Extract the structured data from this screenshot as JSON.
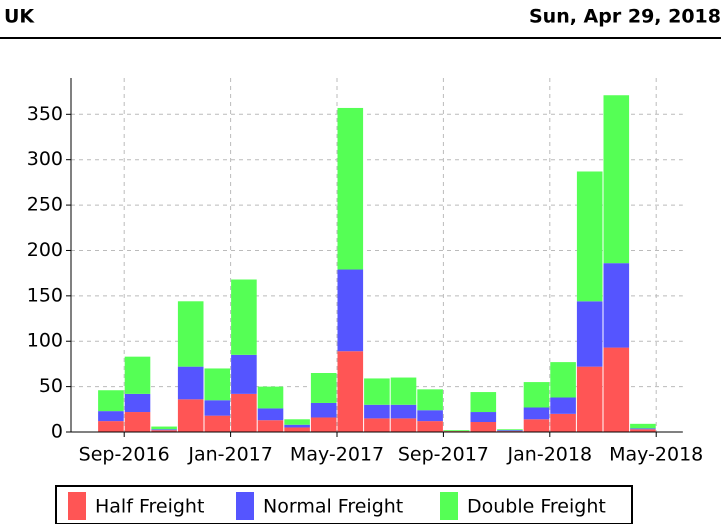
{
  "header": {
    "left": "UK",
    "right": "Sun, Apr 29, 2018"
  },
  "chart_data": {
    "type": "stacked_bar",
    "categories": [
      null,
      null,
      "Sep-2016",
      null,
      null,
      null,
      "Jan-2017",
      null,
      null,
      null,
      "May-2017",
      null,
      null,
      null,
      "Sep-2017",
      null,
      null,
      null,
      "Jan-2018",
      null,
      null,
      null,
      "May-2018"
    ],
    "series": [
      {
        "name": "Half Freight",
        "color": "#ff5555",
        "values": [
          null,
          12,
          22,
          2,
          36,
          18,
          42,
          13,
          5,
          16,
          89,
          15,
          15,
          12,
          1,
          11,
          1,
          14,
          20,
          72,
          93,
          3,
          null
        ]
      },
      {
        "name": "Normal Freight",
        "color": "#5555ff",
        "values": [
          null,
          11,
          20,
          1,
          36,
          17,
          43,
          13,
          3,
          16,
          90,
          15,
          15,
          12,
          0,
          11,
          1,
          13,
          18,
          72,
          93,
          1,
          null
        ]
      },
      {
        "name": "Double Freight",
        "color": "#55ff55",
        "values": [
          null,
          23,
          41,
          3,
          72,
          35,
          83,
          24,
          6,
          33,
          178,
          29,
          30,
          23,
          1,
          22,
          1,
          28,
          39,
          143,
          185,
          5,
          null
        ]
      }
    ],
    "ylim": [
      0,
      390
    ],
    "yticks": [
      0,
      50,
      100,
      150,
      200,
      250,
      300,
      350
    ],
    "grid": true,
    "legend": "bottom"
  }
}
